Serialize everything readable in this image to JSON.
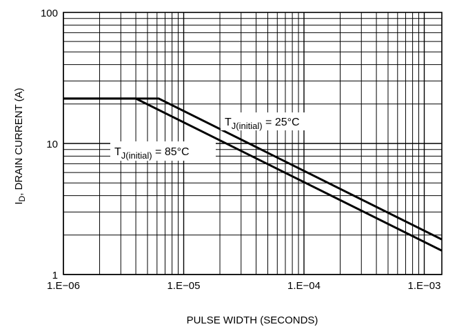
{
  "chart_data": {
    "type": "line",
    "xlabel": "PULSE WIDTH (SECONDS)",
    "ylabel_main": "I",
    "ylabel_sub": "D",
    "ylabel_rest": ", DRAIN CURRENT (A)",
    "x_scale": "log",
    "y_scale": "log",
    "xlim": [
      1e-06,
      0.0014
    ],
    "ylim": [
      1,
      100
    ],
    "grid": true,
    "x_ticks": [
      {
        "value": 1e-06,
        "label": "1.E−06"
      },
      {
        "value": 1e-05,
        "label": "1.E−05"
      },
      {
        "value": 0.0001,
        "label": "1.E−04"
      },
      {
        "value": 0.001,
        "label": "1.E−03"
      }
    ],
    "y_ticks": [
      {
        "value": 1,
        "label": "1"
      },
      {
        "value": 10,
        "label": "10"
      },
      {
        "value": 100,
        "label": "100"
      }
    ],
    "series": [
      {
        "key": "tj25",
        "points": [
          [
            1e-06,
            22
          ],
          [
            6.2e-06,
            22
          ],
          [
            0.0014,
            1.85
          ]
        ]
      },
      {
        "key": "tj85",
        "points": [
          [
            1e-06,
            22
          ],
          [
            4e-06,
            22
          ],
          [
            0.0014,
            1.52
          ]
        ]
      }
    ],
    "annotations": [
      {
        "key": "tj25",
        "main": "T",
        "sub": "J(initial)",
        "rest": " = 25°C"
      },
      {
        "key": "tj85",
        "main": "T",
        "sub": "J(initial)",
        "rest": " = 85°C"
      }
    ]
  }
}
